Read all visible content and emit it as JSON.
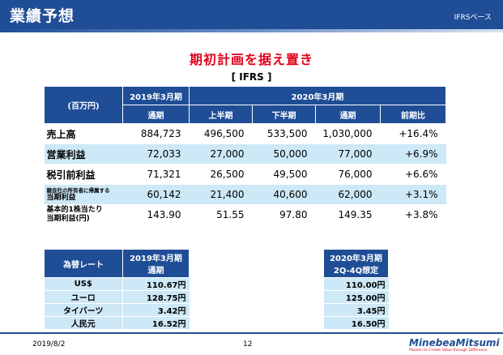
{
  "header": {
    "title": "業績予想",
    "basis": "IFRSベース"
  },
  "heading": "期初計画を据え置き",
  "subheading": "[ IFRS ]",
  "main_table": {
    "unit_label": "(百万円)",
    "col_fy2019": "2019年3月期",
    "col_fy2020": "2020年3月期",
    "sub_full_year": "通期",
    "sub_h1": "上半期",
    "sub_h2": "下半期",
    "sub_full_year2": "通期",
    "sub_yoy": "前期比",
    "rows": [
      {
        "label": "売上高",
        "fy2019": "884,723",
        "h1": "496,500",
        "h2": "533,500",
        "full": "1,030,000",
        "yoy": "+16.4%"
      },
      {
        "label": "営業利益",
        "fy2019": "72,033",
        "h1": "27,000",
        "h2": "50,000",
        "full": "77,000",
        "yoy": "+6.9%"
      },
      {
        "label": "税引前利益",
        "fy2019": "71,321",
        "h1": "26,500",
        "h2": "49,500",
        "full": "76,000",
        "yoy": "+6.6%"
      },
      {
        "label_small": "親会社の所有者に帰属する",
        "label": "当期利益",
        "fy2019": "60,142",
        "h1": "21,400",
        "h2": "40,600",
        "full": "62,000",
        "yoy": "+3.1%"
      },
      {
        "label_line1": "基本的1株当たり",
        "label": "当期利益(円)",
        "fy2019": "143.90",
        "h1": "51.55",
        "h2": "97.80",
        "full": "149.35",
        "yoy": "+3.8%"
      }
    ]
  },
  "fx_left": {
    "label_header": "為替レート",
    "col_line1": "2019年3月期",
    "col_line2": "通期",
    "rows": [
      {
        "label": "US$",
        "value": "110.67円"
      },
      {
        "label": "ユーロ",
        "value": "128.75円"
      },
      {
        "label": "タイバーツ",
        "value": "3.42円"
      },
      {
        "label": "人民元",
        "value": "16.52円"
      }
    ]
  },
  "fx_right": {
    "col_line1": "2020年3月期",
    "col_line2": "2Q-4Q想定",
    "values": [
      "110.00円",
      "125.00円",
      "3.45円",
      "16.50円"
    ]
  },
  "footer": {
    "date": "2019/8/2",
    "page": "12",
    "logo": "MinebeaMitsumi",
    "tagline": "Passion to Create Value through Difference"
  },
  "colors": {
    "brand_blue": "#1f4e96",
    "accent_red": "#e2001a",
    "row_tint": "#cde8f6"
  }
}
